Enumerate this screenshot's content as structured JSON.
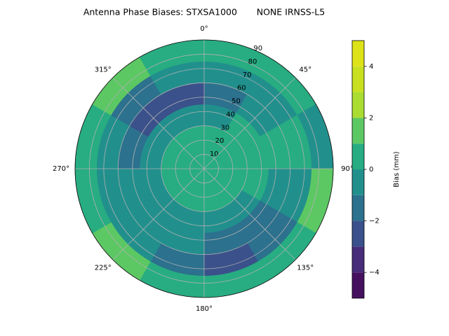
{
  "chart_data": {
    "type": "polar-contour",
    "title": "Antenna Phase Biases: STXSA1000       NONE IRNSS-L5",
    "thetaticks": [
      {
        "value": 0,
        "label": "0°"
      },
      {
        "value": 45,
        "label": "45°"
      },
      {
        "value": 90,
        "label": "90°"
      },
      {
        "value": 135,
        "label": "135°"
      },
      {
        "value": 180,
        "label": "180°"
      },
      {
        "value": 225,
        "label": "225°"
      },
      {
        "value": 270,
        "label": "270°"
      },
      {
        "value": 315,
        "label": "315°"
      }
    ],
    "rlim": [
      0,
      90
    ],
    "rticks": [
      10,
      20,
      30,
      40,
      50,
      60,
      70,
      80,
      90
    ],
    "grid": true,
    "field": {
      "azimuth_edges": [
        0,
        30,
        60,
        90,
        120,
        150,
        180,
        210,
        240,
        270,
        300,
        330,
        360
      ],
      "zenith_edges": [
        0,
        15,
        30,
        45,
        60,
        75,
        90
      ],
      "values": [
        [
          0.5,
          0.5,
          0.5,
          0.5,
          0.5,
          0.5,
          0.5,
          0.5,
          0.5,
          0.5,
          0.5,
          0.5
        ],
        [
          0.5,
          0.5,
          0.5,
          0.5,
          0.5,
          0.5,
          0.5,
          0.5,
          0.5,
          0.5,
          0.5,
          0.5
        ],
        [
          -0.5,
          0.5,
          0.5,
          0.5,
          -0.5,
          -0.5,
          -0.5,
          -0.5,
          -0.5,
          -0.5,
          -0.5,
          -0.5
        ],
        [
          -1.5,
          -0.5,
          0.5,
          -0.5,
          -1.5,
          -1.5,
          -0.5,
          -0.5,
          -0.5,
          -1.5,
          -2.5,
          -2.5
        ],
        [
          -0.5,
          -0.5,
          0.5,
          -0.5,
          -1.5,
          -2.5,
          -1.5,
          -0.5,
          -0.5,
          -0.5,
          -1.5,
          -0.5
        ],
        [
          0.5,
          0.5,
          -0.5,
          1.5,
          0.5,
          0.5,
          0.5,
          1.5,
          0.5,
          0.5,
          1.5,
          0.5
        ]
      ]
    },
    "levels": [
      -5,
      -4,
      -3,
      -2,
      -1,
      0,
      1,
      2,
      3,
      4,
      5
    ],
    "colors": [
      "#45115f",
      "#472c7a",
      "#3b518b",
      "#2c718e",
      "#21908d",
      "#27ad81",
      "#5cc863",
      "#aadc32",
      "#c8e020",
      "#dde318"
    ],
    "colorbar_label": "Bias (mm)",
    "colorbar_ticks": [
      {
        "value": -4,
        "label": "−4"
      },
      {
        "value": -2,
        "label": "−2"
      },
      0,
      2,
      4
    ]
  }
}
